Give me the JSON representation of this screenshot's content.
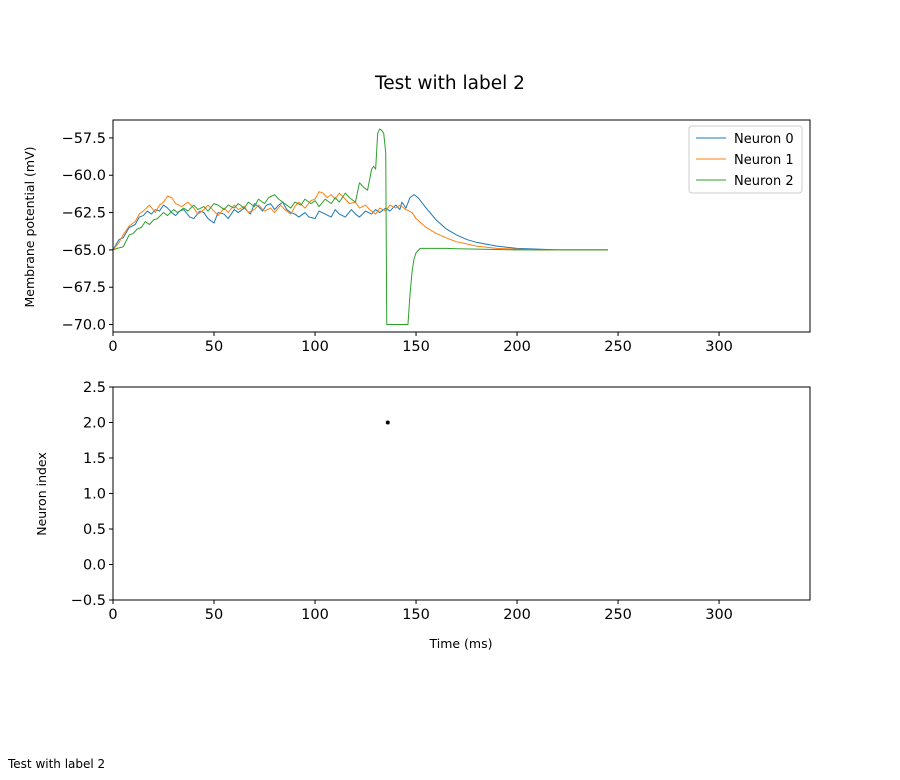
{
  "figure": {
    "suptitle": "Test with label 2",
    "footer_text": "Test with label 2"
  },
  "chart_data": [
    {
      "type": "line",
      "ylabel": "Membrane potential (mV)",
      "xlim": [
        0,
        345
      ],
      "ylim": [
        -70.5,
        -56.3
      ],
      "xticks": [
        "0",
        "50",
        "100",
        "150",
        "200",
        "250",
        "300"
      ],
      "yticks": [
        "−57.5",
        "−60.0",
        "−62.5",
        "−65.0",
        "−67.5",
        "−70.0"
      ],
      "legend_position": "upper right",
      "series": [
        {
          "name": "Neuron 0",
          "color": "#1f77b4",
          "x": [
            0,
            3,
            5,
            8,
            11,
            13,
            15,
            17,
            19,
            21,
            23,
            25,
            27,
            29,
            31,
            33,
            35,
            38,
            40,
            43,
            45,
            47,
            50,
            52,
            55,
            57,
            60,
            62,
            65,
            68,
            70,
            72,
            74,
            76,
            78,
            80,
            82,
            84,
            86,
            88,
            90,
            92,
            95,
            97,
            100,
            102,
            105,
            108,
            110,
            112,
            115,
            118,
            120,
            122,
            125,
            128,
            130,
            132,
            135,
            137,
            140,
            142,
            143,
            145,
            147,
            149,
            151,
            155,
            160,
            165,
            170,
            175,
            180,
            190,
            200,
            210,
            220,
            230,
            245
          ],
          "y": [
            -65.0,
            -64.3,
            -64.2,
            -63.5,
            -63.3,
            -62.8,
            -62.7,
            -62.4,
            -62.6,
            -62.3,
            -62.4,
            -62.0,
            -62.2,
            -62.5,
            -62.7,
            -62.4,
            -62.3,
            -62.8,
            -62.9,
            -62.4,
            -62.5,
            -62.9,
            -63.2,
            -62.5,
            -62.6,
            -62.9,
            -62.3,
            -62.5,
            -62.2,
            -62.6,
            -61.9,
            -62.1,
            -62.4,
            -62.0,
            -61.9,
            -62.3,
            -62.0,
            -61.8,
            -62.3,
            -62.5,
            -62.6,
            -62.8,
            -62.5,
            -62.8,
            -62.9,
            -62.4,
            -62.6,
            -62.8,
            -62.3,
            -62.6,
            -62.8,
            -62.3,
            -62.6,
            -62.8,
            -62.4,
            -62.6,
            -62.3,
            -62.5,
            -62.2,
            -62.4,
            -62.0,
            -62.3,
            -61.8,
            -62.2,
            -61.5,
            -61.3,
            -61.5,
            -62.2,
            -63.0,
            -63.6,
            -64.0,
            -64.3,
            -64.5,
            -64.75,
            -64.9,
            -64.95,
            -65.0,
            -65.0,
            -65.0
          ]
        },
        {
          "name": "Neuron 1",
          "color": "#ff7f0e",
          "x": [
            0,
            3,
            5,
            8,
            11,
            13,
            15,
            18,
            21,
            23,
            25,
            27,
            29,
            31,
            34,
            37,
            40,
            42,
            45,
            47,
            50,
            52,
            55,
            57,
            60,
            62,
            65,
            67,
            70,
            72,
            75,
            78,
            80,
            83,
            85,
            88,
            90,
            92,
            95,
            98,
            100,
            102,
            104,
            106,
            108,
            110,
            112,
            115,
            117,
            120,
            122,
            125,
            127,
            130,
            132,
            135,
            137,
            140,
            142,
            145,
            148,
            150,
            155,
            160,
            165,
            170,
            175,
            180,
            190,
            200,
            210,
            220,
            230,
            245
          ],
          "y": [
            -65.0,
            -64.5,
            -64.0,
            -63.4,
            -63.1,
            -62.6,
            -62.4,
            -62.0,
            -62.5,
            -62.0,
            -61.8,
            -61.4,
            -61.5,
            -61.9,
            -62.1,
            -61.8,
            -62.2,
            -62.6,
            -62.3,
            -62.0,
            -62.4,
            -62.7,
            -62.2,
            -62.5,
            -62.0,
            -62.3,
            -62.1,
            -62.5,
            -62.3,
            -62.0,
            -62.4,
            -62.2,
            -62.5,
            -62.0,
            -62.3,
            -62.6,
            -62.1,
            -61.8,
            -62.2,
            -61.7,
            -61.6,
            -61.1,
            -61.2,
            -61.5,
            -61.3,
            -61.6,
            -61.2,
            -61.6,
            -61.9,
            -61.8,
            -62.2,
            -62.0,
            -62.3,
            -62.6,
            -62.2,
            -62.4,
            -62.0,
            -62.2,
            -62.0,
            -62.3,
            -62.5,
            -62.9,
            -63.5,
            -63.9,
            -64.2,
            -64.45,
            -64.6,
            -64.75,
            -64.9,
            -64.95,
            -65.0,
            -65.0,
            -65.0,
            -65.0
          ]
        },
        {
          "name": "Neuron 2",
          "color": "#2ca02c",
          "x": [
            0,
            2,
            5,
            8,
            10,
            12,
            14,
            16,
            18,
            20,
            22,
            25,
            27,
            30,
            32,
            35,
            37,
            40,
            42,
            45,
            47,
            50,
            52,
            55,
            57,
            60,
            62,
            65,
            67,
            70,
            72,
            75,
            77,
            80,
            82,
            85,
            88,
            90,
            93,
            95,
            98,
            100,
            102,
            105,
            108,
            110,
            112,
            115,
            117,
            120,
            122,
            124,
            126,
            128,
            129,
            130,
            131,
            132,
            133,
            134,
            135,
            135.5,
            136,
            140,
            145,
            146,
            147,
            148,
            149,
            150,
            152,
            155,
            160,
            165,
            170,
            180,
            200,
            220,
            245
          ],
          "y": [
            -65.0,
            -64.9,
            -64.8,
            -64.0,
            -63.9,
            -63.6,
            -63.5,
            -63.1,
            -63.3,
            -63.0,
            -62.9,
            -62.5,
            -62.7,
            -62.3,
            -62.5,
            -62.2,
            -62.4,
            -62.0,
            -62.3,
            -62.1,
            -62.4,
            -61.9,
            -62.0,
            -62.3,
            -62.0,
            -62.2,
            -61.9,
            -62.2,
            -61.8,
            -62.1,
            -61.6,
            -61.9,
            -61.5,
            -61.3,
            -61.6,
            -61.9,
            -62.2,
            -61.8,
            -62.0,
            -61.6,
            -61.9,
            -61.7,
            -62.1,
            -61.6,
            -61.9,
            -61.5,
            -61.8,
            -61.2,
            -61.5,
            -61.8,
            -60.5,
            -60.8,
            -61.0,
            -59.6,
            -59.4,
            -59.6,
            -57.2,
            -56.9,
            -57.0,
            -57.2,
            -58.5,
            -70.0,
            -70.0,
            -70.0,
            -70.0,
            -70.0,
            -68.0,
            -66.5,
            -65.6,
            -65.2,
            -64.9,
            -64.9,
            -64.9,
            -64.9,
            -64.92,
            -64.95,
            -65.0,
            -65.0,
            -65.0
          ]
        }
      ]
    },
    {
      "type": "scatter",
      "xlabel": "Time (ms)",
      "ylabel": "Neuron index",
      "xlim": [
        0,
        345
      ],
      "ylim": [
        -0.5,
        2.5
      ],
      "xticks": [
        "0",
        "50",
        "100",
        "150",
        "200",
        "250",
        "300"
      ],
      "yticks": [
        "−0.5",
        "0.0",
        "0.5",
        "1.0",
        "1.5",
        "2.0",
        "2.5"
      ],
      "points": [
        {
          "x": 136,
          "y": 2,
          "color": "#000000"
        }
      ]
    }
  ]
}
